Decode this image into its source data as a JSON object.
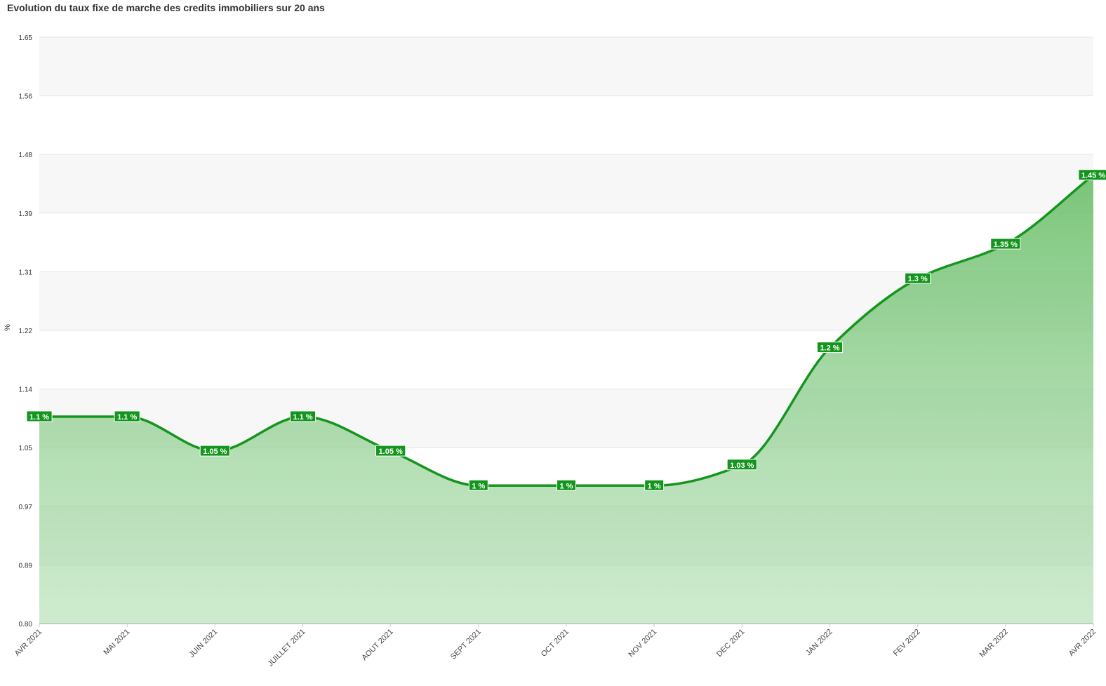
{
  "chart_data": {
    "type": "line",
    "title": "Evolution du taux fixe de marche des credits immobiliers sur 20 ans",
    "y_label": "%",
    "categories": [
      "AVR 2021",
      "MAI 2021",
      "JUIN 2021",
      "JUILLET 2021",
      "AOUT 2021",
      "SEPT 2021",
      "OCT 2021",
      "NOV 2021",
      "DEC 2021",
      "JAN 2022",
      "FEV 2022",
      "MAR 2022",
      "AVR 2022"
    ],
    "values": [
      1.1,
      1.1,
      1.05,
      1.1,
      1.05,
      1,
      1,
      1,
      1.03,
      1.2,
      1.3,
      1.35,
      1.45
    ],
    "value_labels": [
      "1.1 %",
      "1.1 %",
      "1.05 %",
      "1.1 %",
      "1.05 %",
      "1 %",
      "1 %",
      "1 %",
      "1.03 %",
      "1.2 %",
      "1.3 %",
      "1.35 %",
      "1.45 %"
    ],
    "color": "#14961e",
    "ylim": [
      0.8,
      1.65
    ],
    "yticks": [
      {
        "value": 0.8,
        "label": "0.80"
      },
      {
        "value": 0.885,
        "label": "0.89"
      },
      0.97,
      {
        "value": 1.055,
        "label": "1.05"
      },
      1.14,
      {
        "value": 1.225,
        "label": "1.22"
      },
      1.31,
      {
        "value": 1.395,
        "label": "1.39"
      },
      1.48,
      {
        "value": 1.565,
        "label": "1.56"
      },
      1.65
    ],
    "grid": true
  }
}
